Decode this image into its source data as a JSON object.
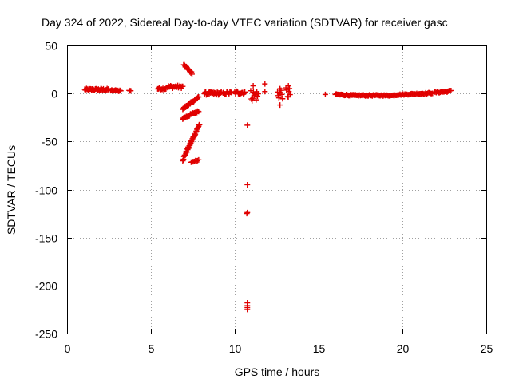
{
  "chart_data": {
    "type": "scatter",
    "title": "Day 324 of 2022, Sidereal Day-to-day VTEC variation (SDTVAR) for receiver gasc",
    "xlabel": "GPS time / hours",
    "ylabel": "SDTVAR / TECUs",
    "xlim": [
      0,
      25
    ],
    "ylim": [
      -250,
      50
    ],
    "xticks": [
      0,
      5,
      10,
      15,
      20,
      25
    ],
    "yticks": [
      50,
      0,
      -50,
      -100,
      -150,
      -200,
      -250
    ],
    "grid": true,
    "marker": "plus",
    "color": "#e00000",
    "series": [
      {
        "name": "SDTVAR",
        "segments": [
          {
            "x0": 1.05,
            "x1": 2.5,
            "y0": 4.0,
            "y1": 4.0,
            "n": 40,
            "jitter": 1.2
          },
          {
            "x0": 2.6,
            "x1": 3.2,
            "y0": 3.0,
            "y1": 3.0,
            "n": 12,
            "jitter": 0.8
          },
          {
            "x0": 3.7,
            "x1": 3.8,
            "y0": 3.0,
            "y1": 3.0,
            "n": 3,
            "jitter": 0.5
          },
          {
            "x0": 5.4,
            "x1": 5.9,
            "y0": 5.0,
            "y1": 5.0,
            "n": 12,
            "jitter": 1.0
          },
          {
            "x0": 6.0,
            "x1": 6.9,
            "y0": 7.0,
            "y1": 7.0,
            "n": 22,
            "jitter": 1.5
          },
          {
            "x0": 6.95,
            "x1": 7.45,
            "y0": 30.0,
            "y1": 21.0,
            "n": 16,
            "jitter": 1.0
          },
          {
            "x0": 6.9,
            "x1": 7.85,
            "y0": -16.0,
            "y1": -4.0,
            "n": 28,
            "jitter": 1.0
          },
          {
            "x0": 6.9,
            "x1": 7.85,
            "y0": -26.0,
            "y1": -18.0,
            "n": 28,
            "jitter": 1.0
          },
          {
            "x0": 6.9,
            "x1": 7.9,
            "y0": -69.0,
            "y1": -32.0,
            "n": 45,
            "jitter": 1.5
          },
          {
            "x0": 7.4,
            "x1": 7.85,
            "y0": -72.0,
            "y1": -69.0,
            "n": 8,
            "jitter": 0.5
          },
          {
            "x0": 8.2,
            "x1": 9.2,
            "y0": 0.0,
            "y1": 0.0,
            "n": 30,
            "jitter": 1.5
          },
          {
            "x0": 9.3,
            "x1": 9.8,
            "y0": 0.5,
            "y1": 0.5,
            "n": 12,
            "jitter": 1.5
          },
          {
            "x0": 10.0,
            "x1": 10.6,
            "y0": 1.0,
            "y1": 1.0,
            "n": 15,
            "jitter": 2.0
          },
          {
            "x0": 10.95,
            "x1": 11.4,
            "y0": -2.0,
            "y1": -2.0,
            "n": 12,
            "jitter": 6.0
          },
          {
            "x0": 12.55,
            "x1": 12.85,
            "y0": 0.0,
            "y1": 0.0,
            "n": 8,
            "jitter": 6.0
          },
          {
            "x0": 13.05,
            "x1": 13.3,
            "y0": 0.0,
            "y1": 0.0,
            "n": 8,
            "jitter": 6.0
          },
          {
            "x0": 16.0,
            "x1": 17.2,
            "y0": -1.0,
            "y1": -2.0,
            "n": 25,
            "jitter": 0.6
          },
          {
            "x0": 17.2,
            "x1": 19.5,
            "y0": -2.0,
            "y1": -2.0,
            "n": 40,
            "jitter": 0.6
          },
          {
            "x0": 19.5,
            "x1": 21.8,
            "y0": -1.5,
            "y1": 0.5,
            "n": 40,
            "jitter": 0.6
          },
          {
            "x0": 21.9,
            "x1": 22.9,
            "y0": 1.0,
            "y1": 2.5,
            "n": 18,
            "jitter": 0.8
          }
        ],
        "points": [
          {
            "x": 10.75,
            "y": -33
          },
          {
            "x": 10.75,
            "y": -95
          },
          {
            "x": 10.75,
            "y": -124
          },
          {
            "x": 10.72,
            "y": -125
          },
          {
            "x": 10.75,
            "y": -218
          },
          {
            "x": 10.75,
            "y": -221
          },
          {
            "x": 10.75,
            "y": -223
          },
          {
            "x": 10.75,
            "y": -225
          },
          {
            "x": 11.8,
            "y": 10
          },
          {
            "x": 11.8,
            "y": 2
          },
          {
            "x": 12.7,
            "y": -12
          },
          {
            "x": 12.7,
            "y": 5
          },
          {
            "x": 13.2,
            "y": 8
          },
          {
            "x": 15.4,
            "y": -1
          },
          {
            "x": 11.1,
            "y": 8
          }
        ]
      }
    ]
  }
}
